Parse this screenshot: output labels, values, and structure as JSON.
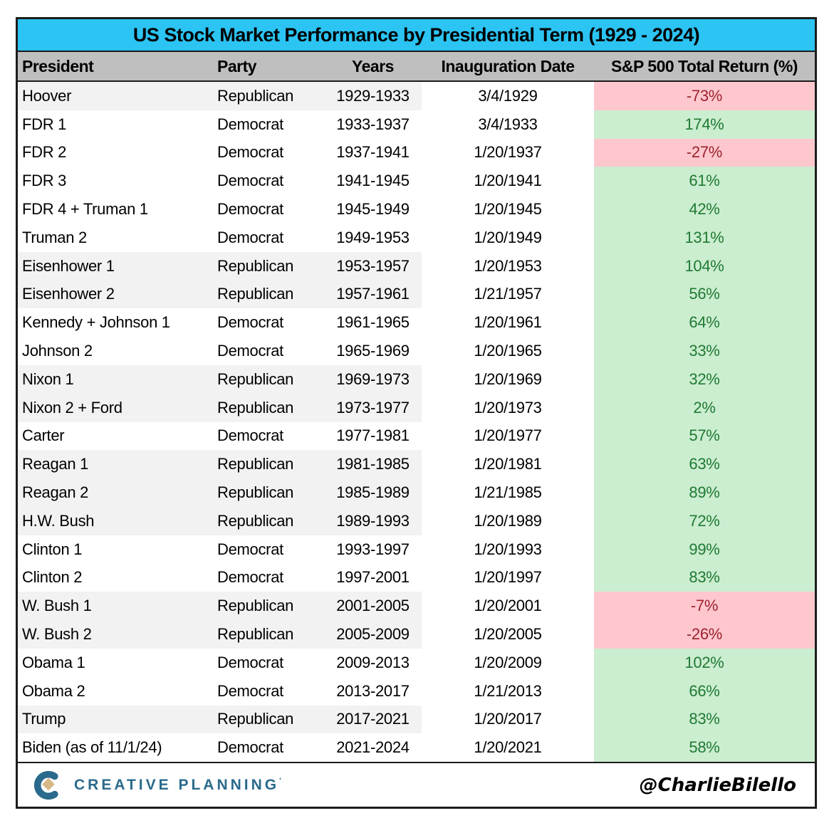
{
  "chart_data": {
    "type": "table",
    "title": "US Stock Market Performance by Presidential Term (1929 - 2024)",
    "columns": [
      "President",
      "Party",
      "Years",
      "Inauguration Date",
      "S&P 500 Total Return (%)"
    ],
    "rows": [
      {
        "president": "Hoover",
        "party": "Republican",
        "years": "1929-1933",
        "inauguration_date": "3/4/1929",
        "sp500_total_return_pct": -73,
        "return_label": "-73%"
      },
      {
        "president": "FDR 1",
        "party": "Democrat",
        "years": "1933-1937",
        "inauguration_date": "3/4/1933",
        "sp500_total_return_pct": 174,
        "return_label": "174%"
      },
      {
        "president": "FDR 2",
        "party": "Democrat",
        "years": "1937-1941",
        "inauguration_date": "1/20/1937",
        "sp500_total_return_pct": -27,
        "return_label": "-27%"
      },
      {
        "president": "FDR 3",
        "party": "Democrat",
        "years": "1941-1945",
        "inauguration_date": "1/20/1941",
        "sp500_total_return_pct": 61,
        "return_label": "61%"
      },
      {
        "president": "FDR 4 + Truman 1",
        "party": "Democrat",
        "years": "1945-1949",
        "inauguration_date": "1/20/1945",
        "sp500_total_return_pct": 42,
        "return_label": "42%"
      },
      {
        "president": "Truman 2",
        "party": "Democrat",
        "years": "1949-1953",
        "inauguration_date": "1/20/1949",
        "sp500_total_return_pct": 131,
        "return_label": "131%"
      },
      {
        "president": "Eisenhower 1",
        "party": "Republican",
        "years": "1953-1957",
        "inauguration_date": "1/20/1953",
        "sp500_total_return_pct": 104,
        "return_label": "104%"
      },
      {
        "president": "Eisenhower 2",
        "party": "Republican",
        "years": "1957-1961",
        "inauguration_date": "1/21/1957",
        "sp500_total_return_pct": 56,
        "return_label": "56%"
      },
      {
        "president": "Kennedy + Johnson 1",
        "party": "Democrat",
        "years": "1961-1965",
        "inauguration_date": "1/20/1961",
        "sp500_total_return_pct": 64,
        "return_label": "64%"
      },
      {
        "president": "Johnson 2",
        "party": "Democrat",
        "years": "1965-1969",
        "inauguration_date": "1/20/1965",
        "sp500_total_return_pct": 33,
        "return_label": "33%"
      },
      {
        "president": "Nixon 1",
        "party": "Republican",
        "years": "1969-1973",
        "inauguration_date": "1/20/1969",
        "sp500_total_return_pct": 32,
        "return_label": "32%"
      },
      {
        "president": "Nixon 2 + Ford",
        "party": "Republican",
        "years": "1973-1977",
        "inauguration_date": "1/20/1973",
        "sp500_total_return_pct": 2,
        "return_label": "2%"
      },
      {
        "president": "Carter",
        "party": "Democrat",
        "years": "1977-1981",
        "inauguration_date": "1/20/1977",
        "sp500_total_return_pct": 57,
        "return_label": "57%"
      },
      {
        "president": "Reagan 1",
        "party": "Republican",
        "years": "1981-1985",
        "inauguration_date": "1/20/1981",
        "sp500_total_return_pct": 63,
        "return_label": "63%"
      },
      {
        "president": "Reagan 2",
        "party": "Republican",
        "years": "1985-1989",
        "inauguration_date": "1/21/1985",
        "sp500_total_return_pct": 89,
        "return_label": "89%"
      },
      {
        "president": "H.W. Bush",
        "party": "Republican",
        "years": "1989-1993",
        "inauguration_date": "1/20/1989",
        "sp500_total_return_pct": 72,
        "return_label": "72%"
      },
      {
        "president": "Clinton 1",
        "party": "Democrat",
        "years": "1993-1997",
        "inauguration_date": "1/20/1993",
        "sp500_total_return_pct": 99,
        "return_label": "99%"
      },
      {
        "president": "Clinton 2",
        "party": "Democrat",
        "years": "1997-2001",
        "inauguration_date": "1/20/1997",
        "sp500_total_return_pct": 83,
        "return_label": "83%"
      },
      {
        "president": "W. Bush 1",
        "party": "Republican",
        "years": "2001-2005",
        "inauguration_date": "1/20/2001",
        "sp500_total_return_pct": -7,
        "return_label": "-7%"
      },
      {
        "president": "W. Bush 2",
        "party": "Republican",
        "years": "2005-2009",
        "inauguration_date": "1/20/2005",
        "sp500_total_return_pct": -26,
        "return_label": "-26%"
      },
      {
        "president": "Obama 1",
        "party": "Democrat",
        "years": "2009-2013",
        "inauguration_date": "1/20/2009",
        "sp500_total_return_pct": 102,
        "return_label": "102%"
      },
      {
        "president": "Obama 2",
        "party": "Democrat",
        "years": "2013-2017",
        "inauguration_date": "1/21/2013",
        "sp500_total_return_pct": 66,
        "return_label": "66%"
      },
      {
        "president": "Trump",
        "party": "Republican",
        "years": "2017-2021",
        "inauguration_date": "1/20/2017",
        "sp500_total_return_pct": 83,
        "return_label": "83%"
      },
      {
        "president": "Biden (as of 11/1/24)",
        "party": "Democrat",
        "years": "2021-2024",
        "inauguration_date": "1/20/2021",
        "sp500_total_return_pct": 58,
        "return_label": "58%"
      }
    ],
    "layout_hints": {
      "negative_rows_highlighted": "pink background, dark red text",
      "positive_rows_highlighted": "green background, dark green text",
      "republican_rows_shaded": "light gray on President/Party/Years columns"
    }
  },
  "footer": {
    "brand": "CREATIVE PLANNING",
    "trademark": "'",
    "handle": "@CharlieBilello"
  },
  "colors": {
    "title_bg": "#2BC4F3",
    "header_bg": "#BFBFBF",
    "republican_row_bg": "#F2F2F2",
    "positive_bg": "#CBEDD0",
    "positive_text": "#1F7A32",
    "negative_bg": "#FEC7CE",
    "negative_text": "#9C232E",
    "brand_blue": "#2A6A8C",
    "brand_gold": "#D6B886"
  }
}
